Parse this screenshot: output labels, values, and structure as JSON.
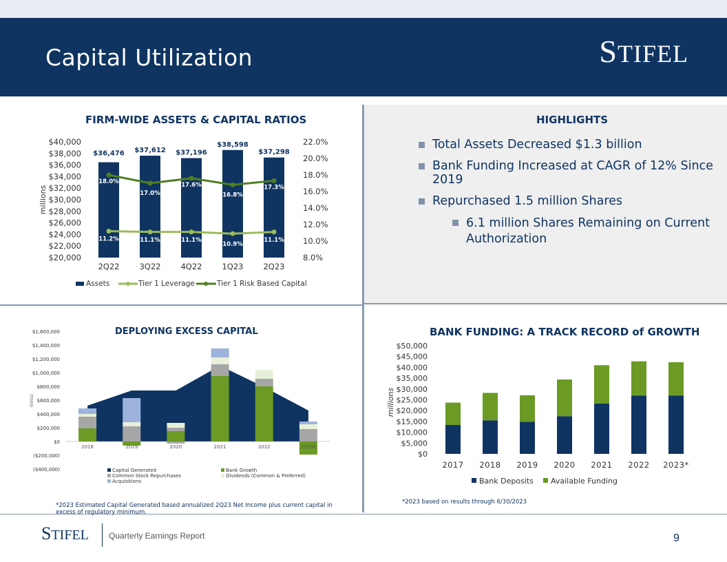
{
  "header": {
    "title": "Capital Utilization",
    "logo_initial": "S",
    "logo_rest": "TIFEL"
  },
  "footer": {
    "logo_initial": "S",
    "logo_rest": "TIFEL",
    "text": "Quarterly Earnings Report",
    "page_number": "9"
  },
  "colors": {
    "navy": "#0f3461",
    "green": "#6b9a25",
    "light_green": "#9bbb59",
    "gray": "#a6a6a6",
    "cream": "#e7f0d8",
    "light_blue": "#9db3db"
  },
  "highlights": {
    "title": "HIGHLIGHTS",
    "bullets": [
      "Total Assets Decreased $1.3 billion",
      "Bank Funding Increased at CAGR of 12% Since 2019",
      "Repurchased 1.5 million Shares"
    ],
    "sub_bullets": [
      "6.1 million Shares Remaining on Current Authorization"
    ]
  },
  "chart_data": [
    {
      "type": "bar",
      "title": "FIRM-WIDE ASSETS & CAPITAL RATIOS",
      "ylabel": "millions",
      "categories": [
        "2Q22",
        "3Q22",
        "4Q22",
        "1Q23",
        "2Q23"
      ],
      "series": [
        {
          "name": "Assets",
          "type": "bar",
          "values": [
            36476,
            37612,
            37196,
            38598,
            37298
          ],
          "labels": [
            "$36,476",
            "$37,612",
            "$37,196",
            "$38,598",
            "$37,298"
          ]
        },
        {
          "name": "Tier 1 Leverage",
          "type": "line",
          "axis": "right",
          "values": [
            11.2,
            11.1,
            11.1,
            10.9,
            11.1
          ],
          "labels": [
            "11.2%",
            "11.1%",
            "11.1%",
            "10.9%",
            "11.1%"
          ]
        },
        {
          "name": "Tier 1 Risk Based Capital",
          "type": "line",
          "axis": "right",
          "values": [
            18.0,
            17.0,
            17.6,
            16.8,
            17.3
          ],
          "labels": [
            "18.0%",
            "17.0%",
            "17.6%",
            "16.8%",
            "17.3%"
          ]
        }
      ],
      "ylim": [
        20000,
        40000
      ],
      "y2lim": [
        8.0,
        22.0
      ],
      "yticks": [
        "$40,000",
        "$38,000",
        "$36,000",
        "$34,000",
        "$32,000",
        "$30,000",
        "$28,000",
        "$26,000",
        "$24,000",
        "$22,000",
        "$20,000"
      ],
      "y2ticks": [
        "22.0%",
        "20.0%",
        "18.0%",
        "16.0%",
        "14.0%",
        "12.0%",
        "10.0%",
        "8.0%"
      ],
      "legend": "bottom"
    },
    {
      "type": "bar",
      "stacked": true,
      "title": "DEPLOYING EXCESS CAPITAL",
      "ylabel": "(000s)",
      "categories": [
        "2018",
        "2019",
        "2020",
        "2021",
        "2022",
        "2023E"
      ],
      "area": {
        "name": "Capital Generated",
        "values": [
          520000,
          740000,
          740000,
          1100000,
          790000,
          450000
        ]
      },
      "series": [
        {
          "name": "Bank Growth",
          "values": [
            190000,
            -60000,
            150000,
            950000,
            800000,
            -190000
          ]
        },
        {
          "name": "Common Stock Repurchases",
          "values": [
            170000,
            220000,
            50000,
            170000,
            110000,
            180000
          ]
        },
        {
          "name": "Dividends (Common & Preferred)",
          "values": [
            40000,
            60000,
            70000,
            100000,
            130000,
            70000
          ]
        },
        {
          "name": "Acquisitions",
          "values": [
            80000,
            350000,
            0,
            130000,
            0,
            40000
          ]
        }
      ],
      "negatives": {
        "2020": -30000
      },
      "ylim": [
        -400000,
        1600000
      ],
      "yticks": [
        "$1,600,000",
        "$1,400,000",
        "$1,200,000",
        "$1,000,000",
        "$800,000",
        "$600,000",
        "$400,000",
        "$200,000",
        "$0",
        "($200,000)",
        "($400,000)"
      ],
      "legend": [
        "Capital Generated",
        "Bank Growth",
        "Common Stock Repurchases",
        "Dividends (Common & Preferred)",
        "Acquisitions"
      ],
      "note": "*2023 Estimated Capital Generated based annualized 2Q23 Net Income plus current capital in excess of regulatory minimum."
    },
    {
      "type": "bar",
      "stacked": true,
      "title": "BANK FUNDING: A TRACK RECORD of GROWTH",
      "ylabel": "millions",
      "categories": [
        "2017",
        "2018",
        "2019",
        "2020",
        "2021",
        "2022",
        "2023*"
      ],
      "series": [
        {
          "name": "Bank Deposits",
          "values": [
            13400,
            15500,
            14800,
            17400,
            23300,
            27000,
            27000
          ]
        },
        {
          "name": "Available Funding",
          "values": [
            10300,
            12700,
            12300,
            17000,
            17700,
            15800,
            15400
          ]
        }
      ],
      "ylim": [
        0,
        50000
      ],
      "yticks": [
        "$50,000",
        "$45,000",
        "$40,000",
        "$35,000",
        "$30,000",
        "$25,000",
        "$20,000",
        "$15,000",
        "$10,000",
        "$5,000",
        "$0"
      ],
      "legend": [
        "Bank Deposits",
        "Available Funding"
      ],
      "note": "*2023 based on results through 6/30/2023"
    }
  ]
}
